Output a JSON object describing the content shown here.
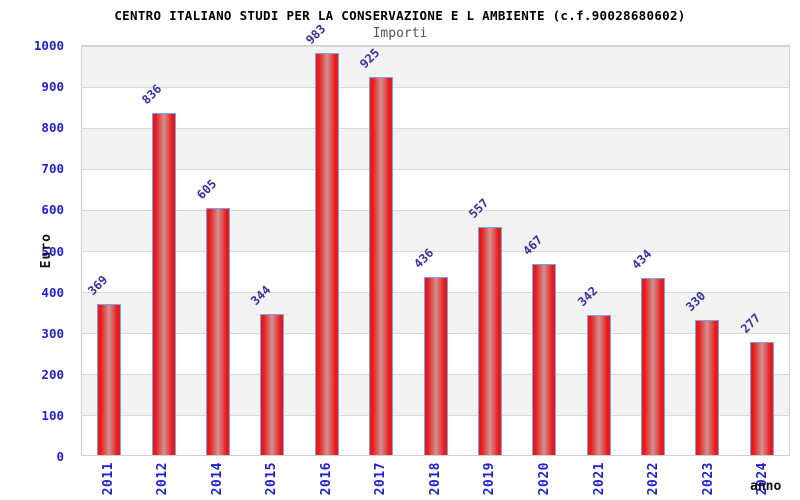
{
  "header": {
    "title": "CENTRO ITALIANO STUDI PER LA CONSERVAZIONE E L AMBIENTE (c.f.90028680602)",
    "subtitle": "Importi"
  },
  "chart_data": {
    "type": "bar",
    "title": "CENTRO ITALIANO STUDI PER LA CONSERVAZIONE E L AMBIENTE (c.f.90028680602)",
    "subtitle": "Importi",
    "categories": [
      "2011",
      "2012",
      "2014",
      "2015",
      "2016",
      "2017",
      "2018",
      "2019",
      "2020",
      "2021",
      "2022",
      "2023",
      "2024"
    ],
    "values": [
      369,
      836,
      605,
      344,
      983,
      925,
      436,
      557,
      467,
      342,
      434,
      330,
      277
    ],
    "xlabel": "anno",
    "ylabel": "Euro",
    "ylim": [
      0,
      1000
    ],
    "y_ticks": [
      0,
      100,
      200,
      300,
      400,
      500,
      600,
      700,
      800,
      900,
      1000
    ],
    "grid": true,
    "legend_position": "none",
    "colors": {
      "background": "#ffffff",
      "title_text": "#000000",
      "subtitle_text": "#555555",
      "axis_label_blue": "#2222cc",
      "value_label_navy": "#333399",
      "bar_edge_red": "#e81a1a",
      "bar_center_pink": "#d29292",
      "bar_border_blue": "#77a3e8",
      "band_gray": "#f2f2f2",
      "gridline_gray": "#d9d9d9"
    }
  }
}
